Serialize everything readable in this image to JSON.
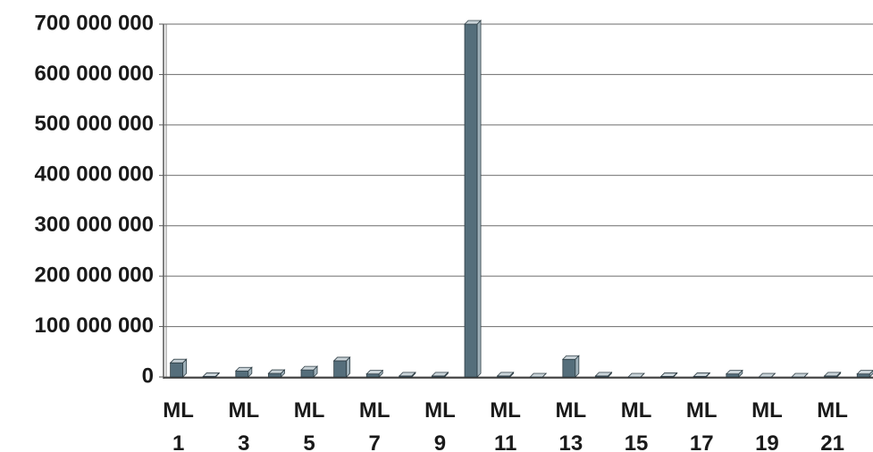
{
  "chart_data": {
    "type": "bar",
    "categories": [
      "ML 1",
      null,
      "ML 3",
      null,
      "ML 5",
      null,
      "ML 7",
      null,
      "ML 9",
      null,
      "ML 11",
      null,
      "ML 13",
      null,
      "ML 15",
      null,
      "ML 17",
      null,
      "ML 19",
      null,
      "ML 21",
      null
    ],
    "values": [
      28000000,
      1000000,
      12000000,
      7000000,
      14000000,
      32000000,
      6000000,
      2000000,
      2000000,
      700000000,
      2000000,
      0,
      35000000,
      2000000,
      0,
      1000000,
      1000000,
      6000000,
      0,
      0,
      2000000,
      6000000
    ],
    "color": "#556e7b",
    "ylim": [
      0,
      700000000
    ],
    "yticks": [
      {
        "value": 0,
        "label": "0"
      },
      {
        "value": 100000000,
        "label": "100 000 000"
      },
      {
        "value": 200000000,
        "label": "200 000 000"
      },
      {
        "value": 300000000,
        "label": "300 000 000"
      },
      {
        "value": 400000000,
        "label": "400 000 000"
      },
      {
        "value": 500000000,
        "label": "500 000 000"
      },
      {
        "value": 600000000,
        "label": "600 000 000"
      },
      {
        "value": 700000000,
        "label": "700 000 000"
      }
    ],
    "grid": true
  }
}
